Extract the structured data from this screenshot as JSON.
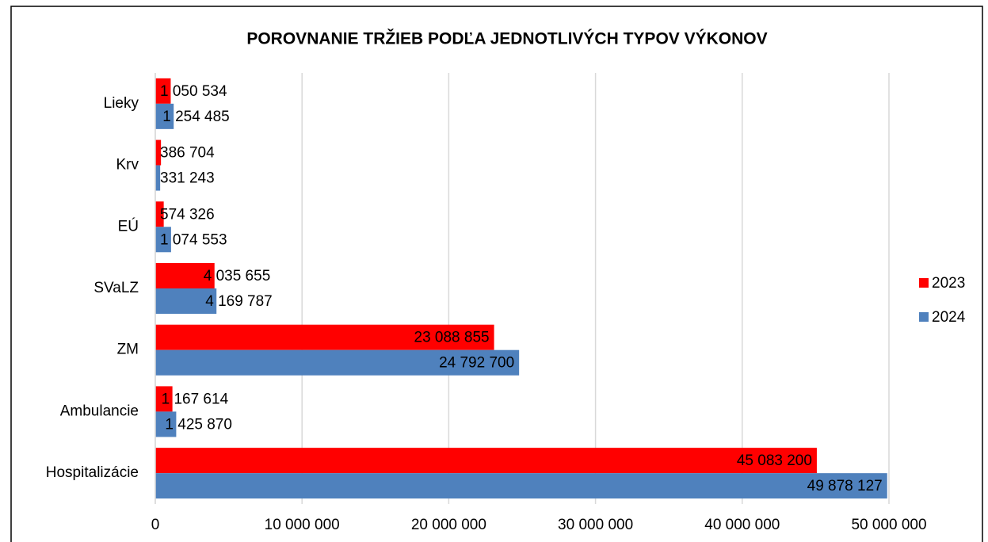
{
  "chart_data": {
    "type": "bar",
    "orientation": "horizontal",
    "title": "POROVNANIE TRŽIEB PODĽA JEDNOTLIVÝCH TYPOV VÝKONOV",
    "categories": [
      "Lieky",
      "Krv",
      "EÚ",
      "SVaLZ",
      "ZM",
      "Ambulancie",
      "Hospitalizácie"
    ],
    "series": [
      {
        "name": "2023",
        "color": "#ff0000",
        "values": [
          1050534,
          386704,
          574326,
          4035655,
          23088855,
          1167614,
          45083200
        ],
        "value_labels": [
          "1 050 534",
          "386 704",
          "574 326",
          "4 035 655",
          "23 088 855",
          "1 167 614",
          "45 083 200"
        ]
      },
      {
        "name": "2024",
        "color": "#4f81bd",
        "values": [
          1254485,
          331243,
          1074553,
          4169787,
          24792700,
          1425870,
          49878127
        ],
        "value_labels": [
          "1 254 485",
          "331 243",
          "1 074 553",
          "4 169 787",
          "24 792 700",
          "1 425 870",
          "49 878 127"
        ]
      }
    ],
    "xlim": [
      0,
      50000000
    ],
    "xticks": [
      0,
      {
        "value": 10000000,
        "label": "10 000 000"
      },
      {
        "value": 20000000,
        "label": "20 000 000"
      },
      {
        "value": 30000000,
        "label": "30 000 000"
      },
      {
        "value": 40000000,
        "label": "40 000 000"
      },
      {
        "value": 50000000,
        "label": "50 000 000"
      }
    ],
    "grid": true,
    "legend": "right"
  }
}
